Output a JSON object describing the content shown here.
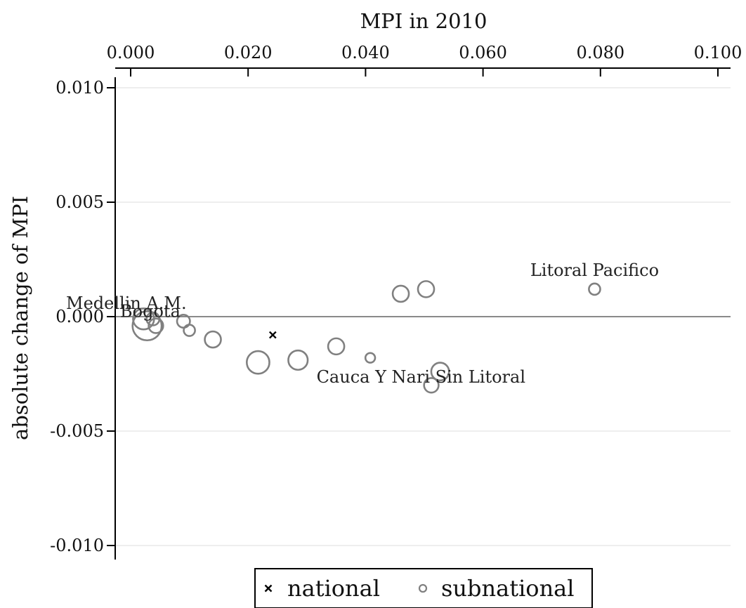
{
  "chart_data": {
    "type": "scatter",
    "xlabel": "MPI in 2010",
    "ylabel": "absolute change of MPI",
    "xlim": [
      0.0,
      0.1
    ],
    "ylim": [
      -0.0105,
      0.0105
    ],
    "x_ticks": [
      0.0,
      0.02,
      0.04,
      0.06,
      0.08,
      0.1
    ],
    "x_tick_labels": [
      "0.000",
      "0.020",
      "0.040",
      "0.060",
      "0.080",
      "0.100"
    ],
    "y_ticks": [
      0.01,
      0.005,
      0.0,
      -0.005,
      -0.01
    ],
    "y_tick_labels": [
      "0.010",
      "0.005",
      "0.000",
      "-0.005",
      "-0.010"
    ],
    "x_axis_position": "top",
    "grid": "horizontal",
    "reference_line_y": 0.0,
    "series": [
      {
        "name": "national",
        "marker": "x",
        "color": "#000000",
        "points": [
          {
            "x": 0.0242,
            "y": -0.0008
          }
        ]
      },
      {
        "name": "subnational",
        "marker": "hollow-circle",
        "color": "#808080",
        "points": [
          {
            "x": 0.0022,
            "y": -0.0001,
            "size": 1.3
          },
          {
            "x": 0.0028,
            "y": -0.0004,
            "size": 1.8
          },
          {
            "x": 0.0038,
            "y": -0.0001,
            "size": 0.8
          },
          {
            "x": 0.0043,
            "y": -0.0004,
            "size": 0.9
          },
          {
            "x": 0.009,
            "y": -0.0002,
            "size": 0.8
          },
          {
            "x": 0.01,
            "y": -0.0006,
            "size": 0.7
          },
          {
            "x": 0.014,
            "y": -0.001,
            "size": 1.0
          },
          {
            "x": 0.0217,
            "y": -0.002,
            "size": 1.4
          },
          {
            "x": 0.0285,
            "y": -0.0019,
            "size": 1.2
          },
          {
            "x": 0.035,
            "y": -0.0013,
            "size": 1.0
          },
          {
            "x": 0.0408,
            "y": -0.0018,
            "size": 0.6
          },
          {
            "x": 0.046,
            "y": 0.001,
            "size": 1.0
          },
          {
            "x": 0.0503,
            "y": 0.0012,
            "size": 1.0
          },
          {
            "x": 0.0512,
            "y": -0.003,
            "size": 0.9
          },
          {
            "x": 0.0527,
            "y": -0.0024,
            "size": 1.1
          },
          {
            "x": 0.079,
            "y": 0.0012,
            "size": 0.7
          }
        ]
      }
    ],
    "annotations": [
      {
        "text": "Medellin A.M.",
        "x": 0.0,
        "y": 0.0
      },
      {
        "text": "Bogota",
        "x": 0.0012,
        "y": -0.0001
      },
      {
        "text": "Litoral Pacifico",
        "x": 0.079,
        "y": 0.0012
      },
      {
        "text": "Cauca Y Nari Sin Litoral",
        "x": 0.0527,
        "y": -0.0024
      }
    ],
    "legend": {
      "placement": "bottom",
      "items": [
        {
          "label": "national",
          "marker": "x"
        },
        {
          "label": "subnational",
          "marker": "hollow-circle"
        }
      ]
    }
  }
}
